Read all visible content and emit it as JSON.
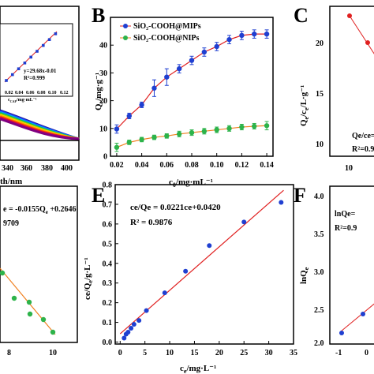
{
  "panels": {
    "A": {
      "inset_eq": "y=29.68x-0.01",
      "inset_r2": "R²=0.999",
      "inset_xticks": [
        "0.02",
        "0.04",
        "0.06",
        "0.08",
        "0.10",
        "0.12"
      ],
      "inset_xlabel": "c",
      "inset_xlabel_sub": "CAP",
      "inset_xlabel_unit": "/mg·mL⁻¹",
      "x_ticks": [
        "340",
        "360",
        "380",
        "400"
      ],
      "xlabel": "th/nm"
    },
    "B": {
      "letter": "B",
      "ylabel": "Q",
      "ylabel_sub": "e",
      "ylabel_unit": "/mg·g⁻¹",
      "xlabel": "c",
      "xlabel_sub": "0",
      "xlabel_unit": "/mg·mL⁻¹",
      "legend": [
        "SiO₂-COOH@MIPs",
        "SiO₂-COOH@NIPs"
      ]
    },
    "C": {
      "letter": "C",
      "ylabel": "Q",
      "ylabel_sub": "e",
      "ylabel_unit": "/c",
      "ylabel_sub2": "e",
      "ylabel_unit2": "/L·g⁻¹",
      "y_ticks": [
        "10",
        "15",
        "20"
      ],
      "x_ticks": [
        "10"
      ],
      "eq": "Q",
      "eq_rest": "e/c",
      "eq_tail": "e=-",
      "r2": "R²=0.9"
    },
    "D": {
      "eq": "e = -0.0155Q",
      "eq_sub": "e",
      "eq_tail": " +0.2646",
      "r2": "9709",
      "x_ticks": [
        "8",
        "10"
      ]
    },
    "E": {
      "letter": "E",
      "eq": "c",
      "eq_rest": "e/Q",
      "eq_tail": "e = 0.0221c",
      "eq_tail2": "e+0.0420",
      "r2": "R² = 0.9876",
      "ylabel": "c",
      "ylabel_rest": "e/Q",
      "ylabel_sub": "e",
      "ylabel_unit": "/g·L⁻¹",
      "xlabel": "c",
      "xlabel_sub": "e",
      "xlabel_unit": "/mg·L⁻¹"
    },
    "F": {
      "letter": "F",
      "eq": "lnQ",
      "eq_rest": "e=",
      "r2": "R²=0.9",
      "ylabel": "lnQ",
      "ylabel_sub": "e",
      "y_ticks": [
        "2.0",
        "2.5",
        "3.0",
        "3.5",
        "4.0"
      ],
      "x_ticks": [
        "-1",
        "0"
      ]
    }
  },
  "chart_data": [
    {
      "panel": "B",
      "type": "line",
      "xlabel": "c0/mg·mL⁻¹",
      "ylabel": "Qe/mg·g⁻¹",
      "x": [
        0.02,
        0.03,
        0.04,
        0.05,
        0.06,
        0.07,
        0.08,
        0.09,
        0.1,
        0.11,
        0.12,
        0.13,
        0.14
      ],
      "xlim": [
        0.015,
        0.145
      ],
      "ylim": [
        0,
        50
      ],
      "xticks": [
        0.02,
        0.04,
        0.06,
        0.08,
        0.1,
        0.12,
        0.14
      ],
      "yticks": [
        0,
        10,
        20,
        30,
        40
      ],
      "series": [
        {
          "name": "SiO₂-COOH@MIPs",
          "color": "#1f3fd1",
          "line": "#e02020",
          "values": [
            9.8,
            14.5,
            18.5,
            24.5,
            28.5,
            31.5,
            34.5,
            37.5,
            39.5,
            42.0,
            43.5,
            44.0,
            44.0
          ],
          "errors": [
            1.5,
            1.0,
            1.0,
            3.0,
            3.0,
            1.5,
            1.5,
            1.5,
            1.5,
            1.5,
            1.5,
            1.5,
            1.5
          ]
        },
        {
          "name": "SiO₂-COOH@NIPs",
          "color": "#2db34a",
          "line": "#f08020",
          "values": [
            3.2,
            5.0,
            6.0,
            6.8,
            7.3,
            8.0,
            8.5,
            9.0,
            9.5,
            10.0,
            10.5,
            10.8,
            11.0
          ],
          "errors": [
            1.5,
            0.8,
            0.8,
            0.8,
            0.8,
            1.0,
            1.0,
            1.0,
            1.0,
            1.0,
            1.0,
            1.0,
            1.5
          ]
        }
      ]
    },
    {
      "panel": "E",
      "type": "scatter",
      "xlabel": "ce/mg·L⁻¹",
      "ylabel": "ce/Qe/g·L⁻¹",
      "x": [
        0.8,
        1.2,
        1.6,
        2.2,
        2.8,
        3.8,
        5.3,
        9.0,
        13.2,
        18.0,
        25.0,
        32.5
      ],
      "values": [
        0.02,
        0.04,
        0.05,
        0.07,
        0.09,
        0.11,
        0.16,
        0.25,
        0.36,
        0.49,
        0.61,
        0.71
      ],
      "fit": {
        "slope": 0.0221,
        "intercept": 0.042
      },
      "xlim": [
        -1,
        35
      ],
      "ylim": [
        -0.01,
        0.8
      ],
      "xticks": [
        0,
        5,
        10,
        15,
        20,
        25,
        30,
        35
      ],
      "yticks": [
        0.0,
        0.1,
        0.2,
        0.3,
        0.4,
        0.5,
        0.6,
        0.7,
        0.8
      ]
    }
  ],
  "colors": {
    "mip_marker": "#1f3fd1",
    "mip_line": "#e02020",
    "nip_marker": "#2db34a",
    "nip_line": "#f08020",
    "fit_line": "#e02020"
  }
}
